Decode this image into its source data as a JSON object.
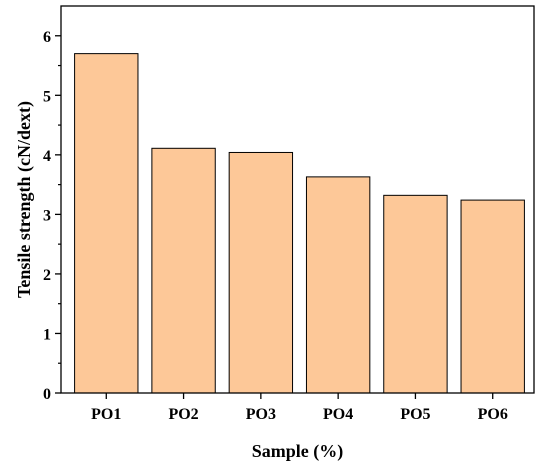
{
  "chart_data": {
    "type": "bar",
    "title": "",
    "xlabel": "Sample (%)",
    "ylabel": "Tensile strength (cN/dext)",
    "categories": [
      "PO1",
      "PO2",
      "PO3",
      "PO4",
      "PO5",
      "PO6"
    ],
    "values": [
      5.7,
      4.11,
      4.04,
      3.63,
      3.32,
      3.24
    ],
    "ylim": [
      0,
      6.5
    ],
    "yticks": [
      0,
      1,
      2,
      3,
      4,
      5,
      6
    ],
    "grid": false,
    "legend": "none",
    "bar_color": "#fdc898",
    "bar_edge_color": "#000000"
  }
}
